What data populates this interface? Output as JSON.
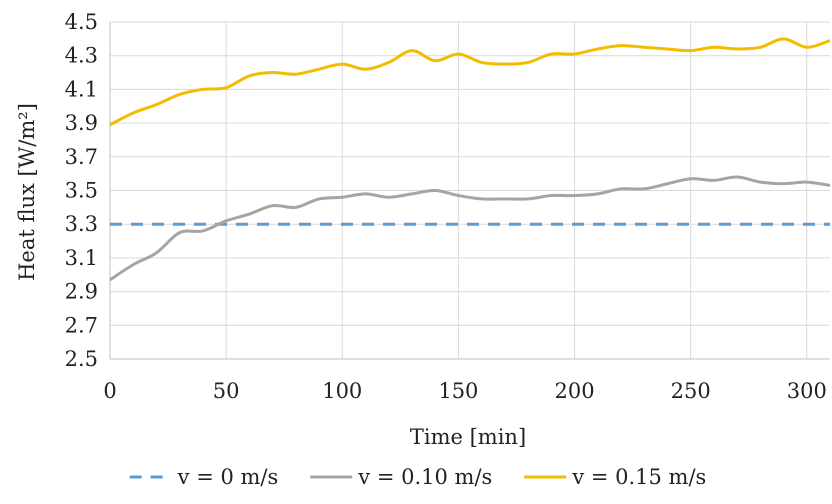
{
  "chart_data": {
    "type": "line",
    "xlabel": "Time [min]",
    "ylabel": "Heat flux [W/m²]",
    "xlim": [
      0,
      310
    ],
    "ylim": [
      2.5,
      4.5
    ],
    "x_ticks": [
      "0",
      "50",
      "100",
      "150",
      "200",
      "250",
      "300"
    ],
    "y_ticks": [
      "2.5",
      "2.7",
      "2.9",
      "3.1",
      "3.3",
      "3.5",
      "3.7",
      "3.9",
      "4.1",
      "4.3",
      "4.5"
    ],
    "grid": "vertical and horizontal",
    "legend_position": "bottom",
    "series": [
      {
        "name": "v = 0 m/s",
        "color": "#5b9bd5",
        "dash": "dashed",
        "x": [
          0,
          310
        ],
        "y": [
          3.3,
          3.3
        ]
      },
      {
        "name": "v = 0.10 m/s",
        "color": "#a5a5a5",
        "dash": "solid",
        "x": [
          0,
          10,
          20,
          30,
          40,
          50,
          60,
          70,
          80,
          90,
          100,
          110,
          120,
          130,
          140,
          150,
          160,
          170,
          180,
          190,
          200,
          210,
          220,
          230,
          240,
          250,
          260,
          270,
          280,
          290,
          300,
          310
        ],
        "y": [
          2.97,
          3.06,
          3.13,
          3.25,
          3.26,
          3.32,
          3.36,
          3.41,
          3.4,
          3.45,
          3.46,
          3.48,
          3.46,
          3.48,
          3.5,
          3.47,
          3.45,
          3.45,
          3.45,
          3.47,
          3.47,
          3.48,
          3.51,
          3.51,
          3.54,
          3.57,
          3.56,
          3.58,
          3.55,
          3.54,
          3.55,
          3.53
        ]
      },
      {
        "name": "v = 0.15 m/s",
        "color": "#f2bc00",
        "dash": "solid",
        "x": [
          0,
          10,
          20,
          30,
          40,
          50,
          60,
          70,
          80,
          90,
          100,
          110,
          120,
          130,
          140,
          150,
          160,
          170,
          180,
          190,
          200,
          210,
          220,
          230,
          240,
          250,
          260,
          270,
          280,
          290,
          300,
          310
        ],
        "y": [
          3.89,
          3.96,
          4.01,
          4.07,
          4.1,
          4.11,
          4.18,
          4.2,
          4.19,
          4.22,
          4.25,
          4.22,
          4.26,
          4.33,
          4.27,
          4.31,
          4.26,
          4.25,
          4.26,
          4.31,
          4.31,
          4.34,
          4.36,
          4.35,
          4.34,
          4.33,
          4.35,
          4.34,
          4.35,
          4.4,
          4.35,
          4.39
        ]
      }
    ]
  }
}
